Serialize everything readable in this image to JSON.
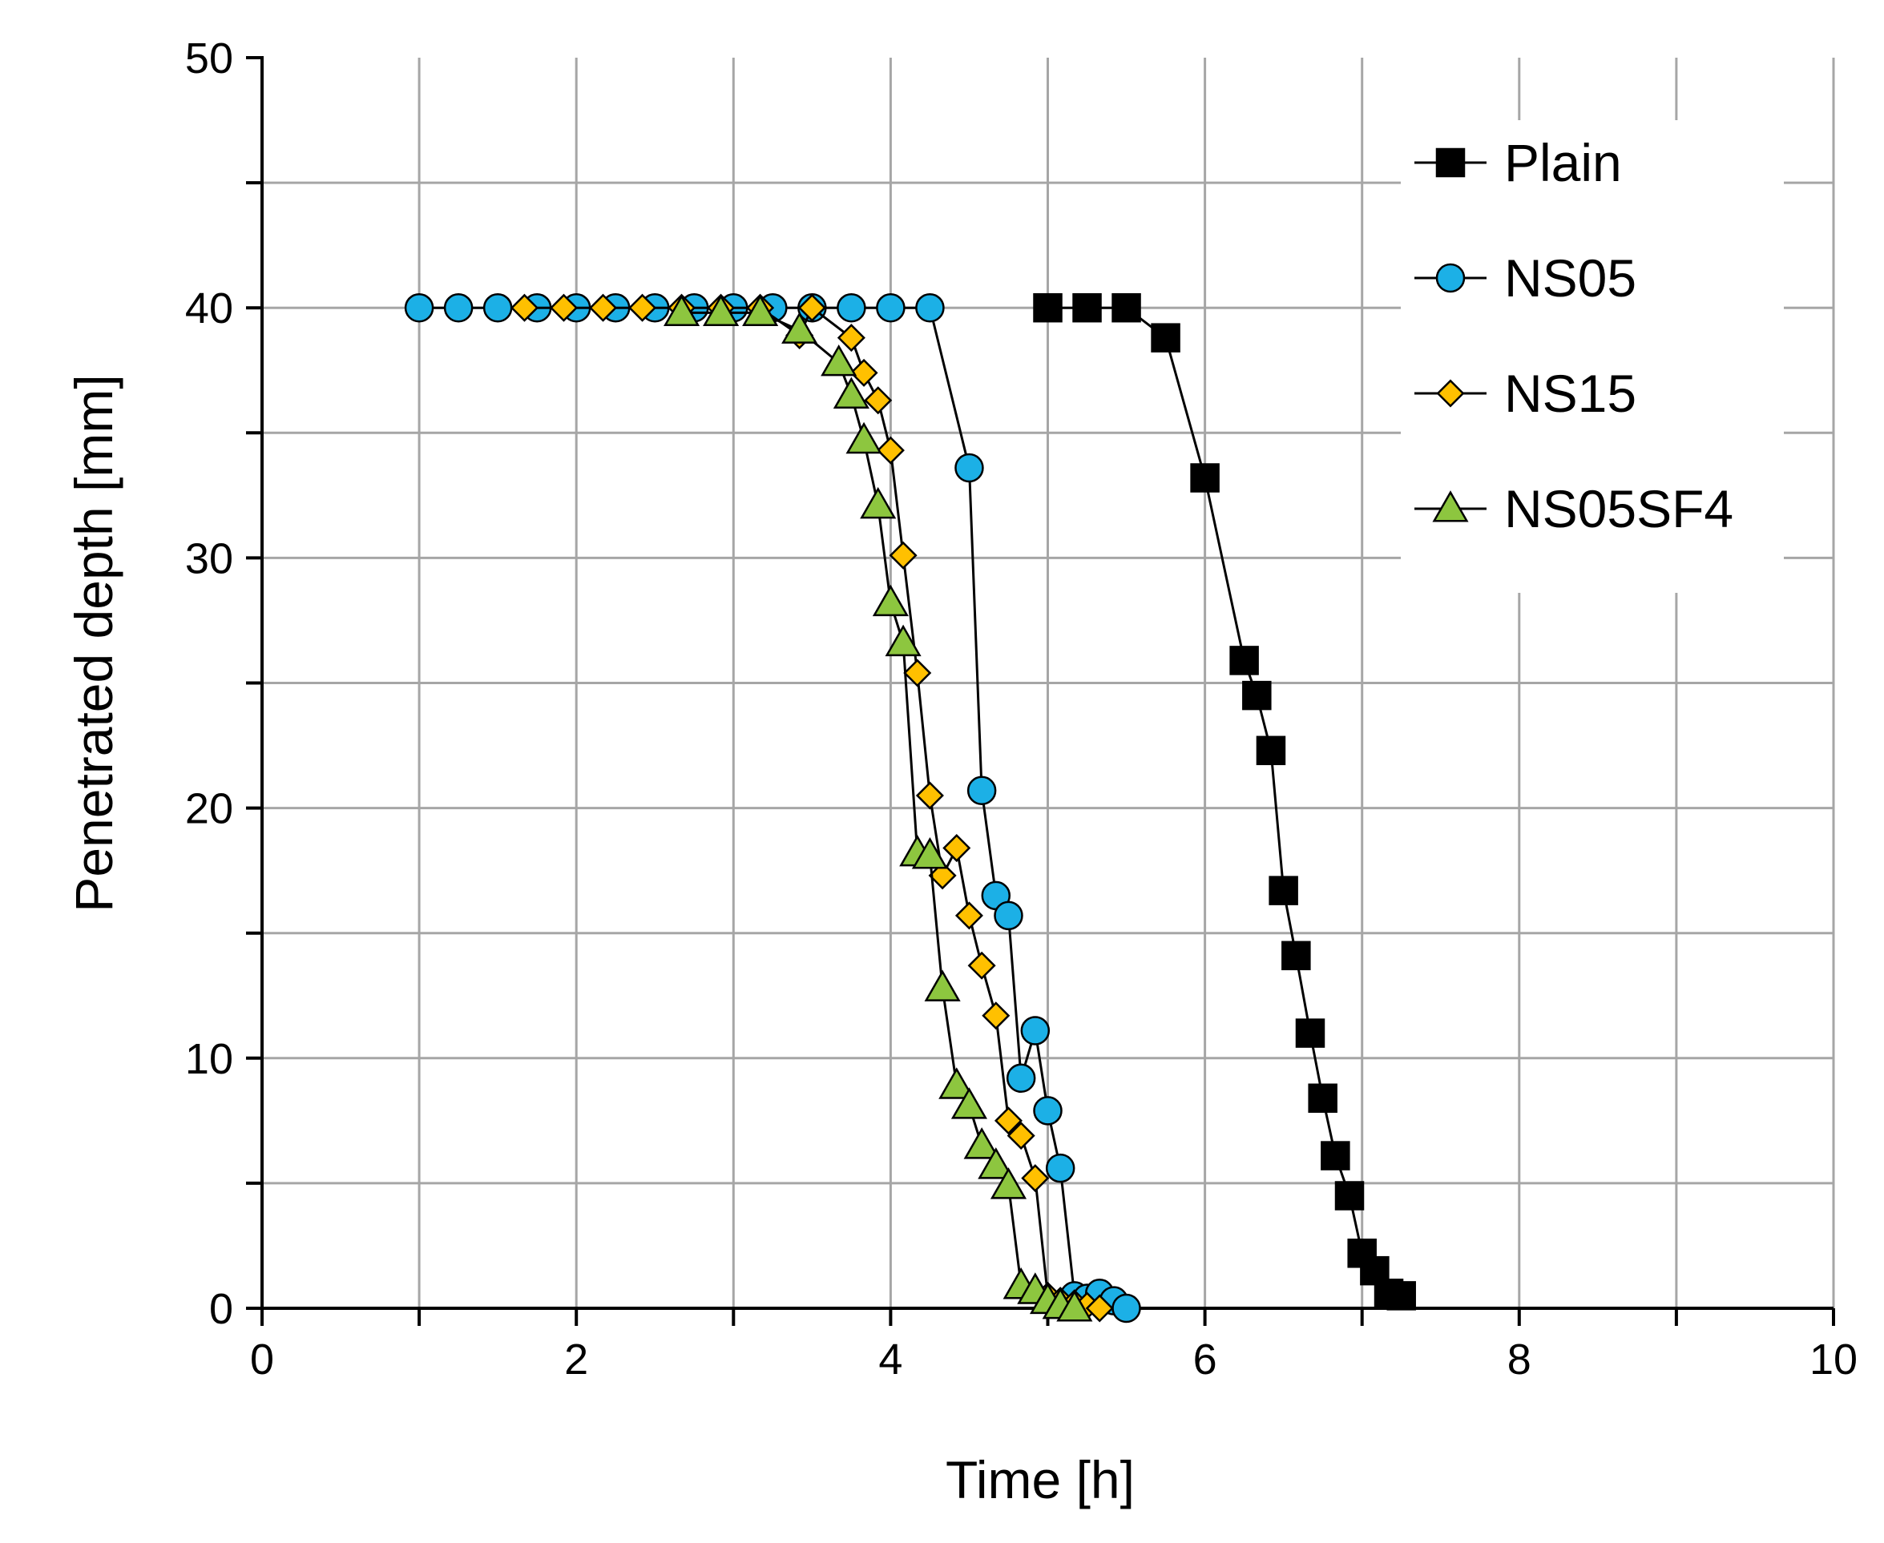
{
  "chart_data": {
    "type": "line",
    "title": "",
    "xlabel": "Time [h]",
    "ylabel": "Penetrated depth [mm]",
    "xlim": [
      0,
      10
    ],
    "ylim": [
      0,
      50
    ],
    "xticks": [
      0,
      2,
      4,
      6,
      8,
      10
    ],
    "yticks": [
      0,
      10,
      20,
      30,
      40,
      50
    ],
    "x_minor_step": 1,
    "y_minor_step": 5,
    "grid": true,
    "legend_position": "top-right",
    "series": [
      {
        "name": "Plain",
        "marker": "square",
        "color": "#000000",
        "x": [
          5.0,
          5.25,
          5.5,
          5.75,
          6.0,
          6.25,
          6.33,
          6.42,
          6.5,
          6.58,
          6.67,
          6.75,
          6.83,
          6.92,
          7.0,
          7.08,
          7.17,
          7.25
        ],
        "y": [
          40,
          40,
          40,
          38.8,
          33.2,
          25.9,
          24.5,
          22.3,
          16.7,
          14.1,
          11.0,
          8.4,
          6.1,
          4.5,
          2.2,
          1.5,
          0.6,
          0.5
        ]
      },
      {
        "name": "NS05",
        "marker": "circle",
        "color": "#1cb0e6",
        "x": [
          1.0,
          1.25,
          1.5,
          1.75,
          2.0,
          2.25,
          2.5,
          2.75,
          3.0,
          3.25,
          3.5,
          3.75,
          4.0,
          4.25,
          4.5,
          4.58,
          4.67,
          4.75,
          4.83,
          4.92,
          5.0,
          5.08,
          5.17,
          5.25,
          5.33,
          5.42,
          5.5
        ],
        "y": [
          40,
          40,
          40,
          40,
          40,
          40,
          40,
          40,
          40,
          40,
          40,
          40,
          40,
          40,
          33.6,
          20.7,
          16.5,
          15.7,
          9.2,
          11.1,
          7.9,
          5.6,
          0.5,
          0.4,
          0.6,
          0.3,
          0.0
        ]
      },
      {
        "name": "NS15",
        "marker": "diamond",
        "color": "#ffc000",
        "x": [
          1.67,
          1.92,
          2.17,
          2.42,
          2.67,
          2.92,
          3.17,
          3.42,
          3.5,
          3.75,
          3.83,
          3.92,
          4.0,
          4.08,
          4.17,
          4.25,
          4.33,
          4.42,
          4.5,
          4.58,
          4.67,
          4.75,
          4.83,
          4.92,
          5.0,
          5.08,
          5.17,
          5.25,
          5.33
        ],
        "y": [
          40,
          40,
          40,
          40,
          40,
          40,
          40,
          38.9,
          40,
          38.8,
          37.4,
          36.3,
          34.3,
          30.1,
          25.4,
          20.5,
          17.3,
          18.4,
          15.7,
          13.7,
          11.7,
          7.5,
          6.9,
          5.2,
          0.5,
          0.3,
          0.2,
          0.1,
          0.0
        ]
      },
      {
        "name": "NS05SF4",
        "marker": "triangle",
        "color": "#8dc63f",
        "x": [
          2.67,
          2.92,
          3.17,
          3.42,
          3.67,
          3.75,
          3.83,
          3.92,
          4.0,
          4.08,
          4.17,
          4.25,
          4.33,
          4.42,
          4.5,
          4.58,
          4.67,
          4.75,
          4.83,
          4.92,
          5.0,
          5.08,
          5.17
        ],
        "y": [
          39.8,
          39.8,
          39.8,
          39.1,
          37.8,
          36.5,
          34.7,
          32.1,
          28.2,
          26.6,
          18.2,
          18.1,
          12.8,
          8.9,
          8.1,
          6.5,
          5.7,
          4.9,
          0.9,
          0.7,
          0.3,
          0.1,
          0.0
        ]
      }
    ]
  }
}
